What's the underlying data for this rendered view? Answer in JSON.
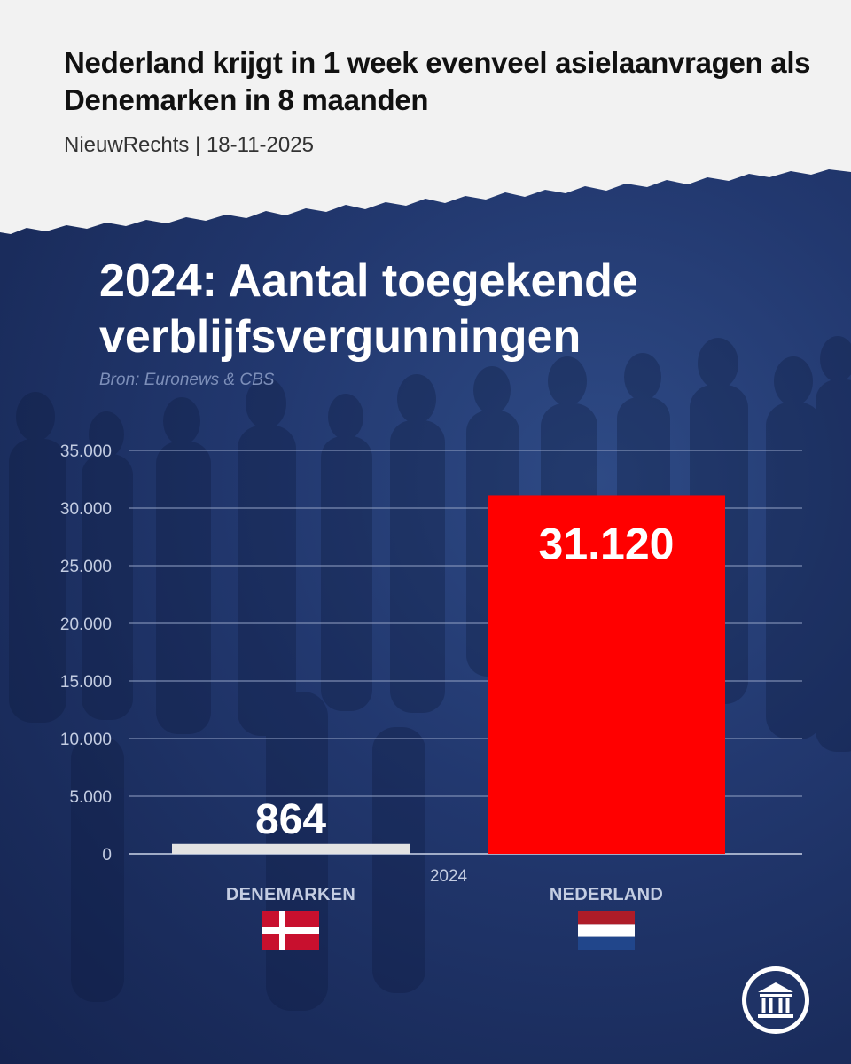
{
  "header": {
    "headline": "Nederland krijgt in 1 week evenveel asielaanvragen als Denemarken in 8 maanden",
    "byline": "NieuwRechts | 18-11-2025"
  },
  "chart_data": {
    "type": "bar",
    "title": "2024: Aantal toegekende verblijfsvergunningen",
    "source": "Bron: Euronews & CBS",
    "xlabel": "2024",
    "ylabel": "",
    "categories": [
      "DENEMARKEN",
      "NEDERLAND"
    ],
    "values": [
      864,
      31120
    ],
    "value_labels": [
      "864",
      "31.120"
    ],
    "colors": [
      "#e3e3e3",
      "#ff0000"
    ],
    "ylim": [
      0,
      35000
    ],
    "yticks": [
      0,
      5000,
      10000,
      15000,
      20000,
      25000,
      30000,
      35000
    ],
    "ytick_labels": [
      "0",
      "5.000",
      "10.000",
      "15.000",
      "20.000",
      "25.000",
      "30.000",
      "35.000"
    ],
    "grid": true,
    "legend": "none"
  },
  "flags": {
    "denemarken": "flag-denmark-icon",
    "nederland": "flag-netherlands-icon"
  },
  "logo": "parliament-building-icon",
  "colors": {
    "background": "#1f3366",
    "paper": "#f2f2f2",
    "bar_nederland": "#ff0000",
    "bar_denemarken": "#e3e3e3"
  }
}
